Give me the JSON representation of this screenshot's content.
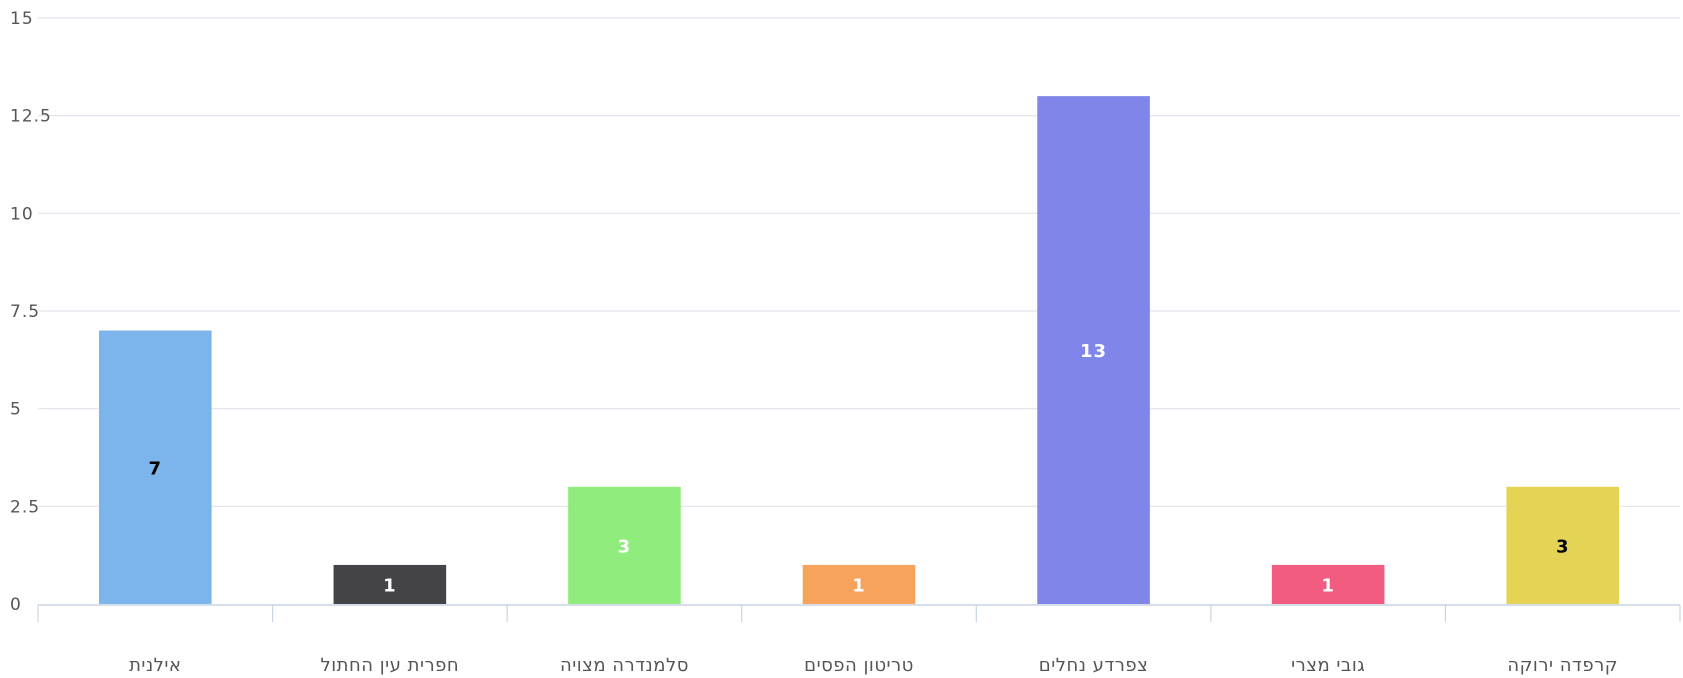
{
  "chart_data": {
    "type": "bar",
    "categories": [
      "אילנית",
      "חפרית עין החתול",
      "סלמנדרה מצויה",
      "טריטון הפסים",
      "צפרדע נחלים",
      "גובי מצרי",
      "קרפדה ירוקה"
    ],
    "values": [
      7,
      1,
      3,
      1,
      13,
      1,
      3
    ],
    "colors": [
      "#7cb5ec",
      "#434348",
      "#90ed7d",
      "#f7a35c",
      "#8085e9",
      "#f15c80",
      "#e4d354"
    ],
    "label_colors": [
      "#000000",
      "#ffffff",
      "#ffffff",
      "#ffffff",
      "#ffffff",
      "#ffffff",
      "#000000"
    ],
    "ylim": [
      0,
      15
    ],
    "yticks": [
      0,
      2.5,
      5,
      7.5,
      10,
      12.5,
      15
    ],
    "ytick_labels": [
      "0",
      "2.5",
      "5",
      "7.5",
      "10",
      "12.5",
      "15"
    ],
    "grid": true,
    "legend": "none"
  }
}
